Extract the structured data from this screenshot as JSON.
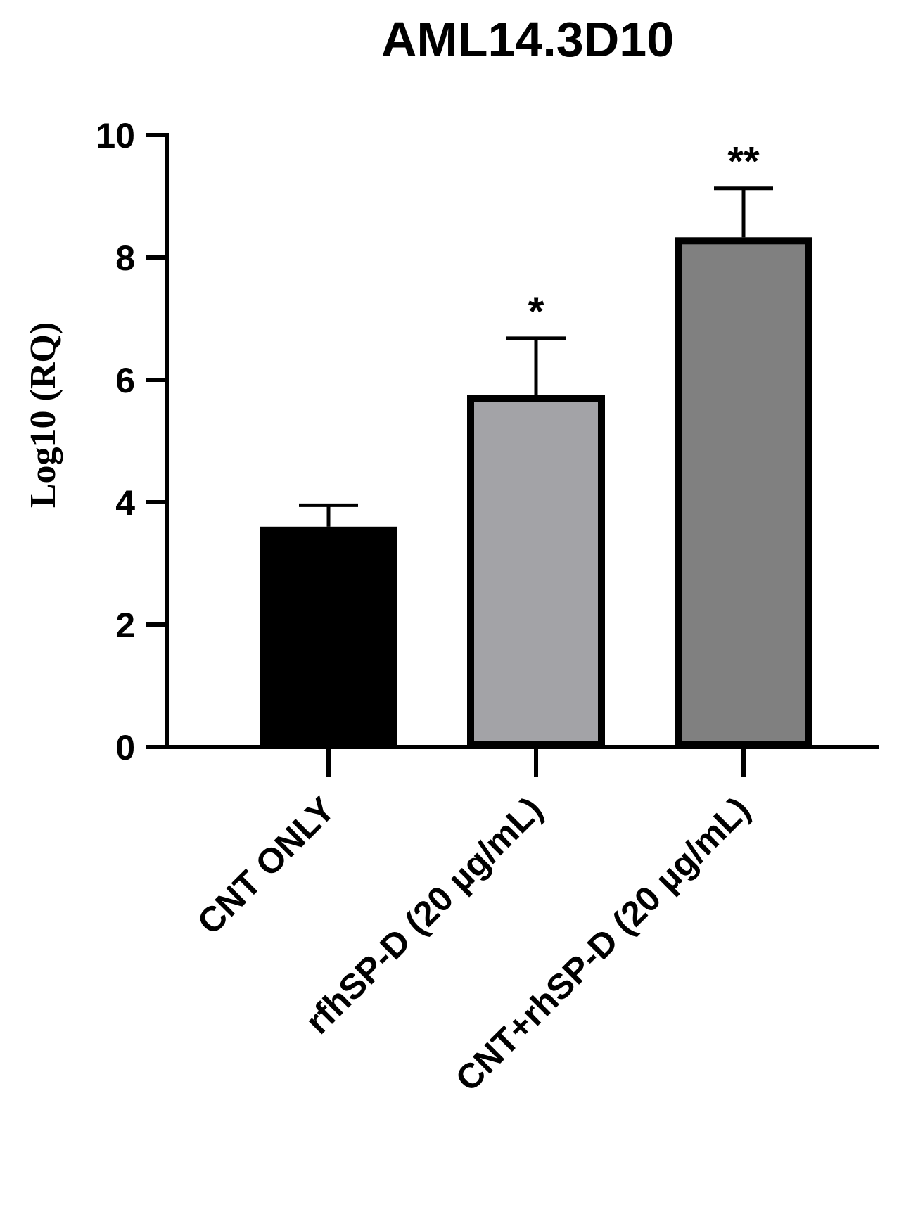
{
  "chart_data": {
    "type": "bar",
    "title": "AML14.3D10",
    "xlabel": "",
    "ylabel": "Log10 (RQ)",
    "ylim": [
      0,
      10
    ],
    "yticks": [
      "0",
      "2",
      "4",
      "6",
      "8",
      "10"
    ],
    "categories": [
      "CNT ONLY",
      "rfhSP-D (20 µg/mL)",
      "CNT+rhSP-D (20 µg/mL)"
    ],
    "values": [
      3.6,
      5.75,
      8.33
    ],
    "error": [
      0.35,
      0.93,
      0.8
    ],
    "significance": [
      "",
      "*",
      "**"
    ],
    "colors": [
      "#000000",
      "#a3a3a7",
      "#808080"
    ],
    "grid": false,
    "legend": "none"
  }
}
